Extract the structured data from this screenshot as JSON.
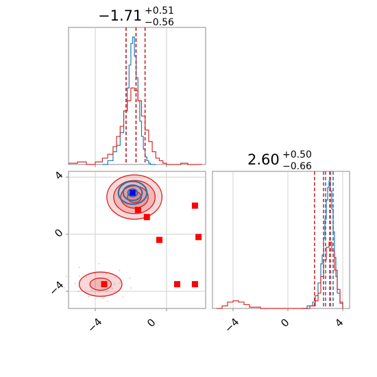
{
  "chart_data": {
    "type": "corner",
    "parameters": 2,
    "colors": {
      "series_a": "#1f77b4",
      "series_b": "#d62728",
      "injected_marker": "#0000ff",
      "points": "#ff0000"
    },
    "grid": true,
    "panels": [
      {
        "id": "marginal-param-1",
        "type": "histogram",
        "title": {
          "median": "−1.71",
          "plus": "+0.51",
          "minus": "−0.56"
        },
        "xlim": [
          -5.5,
          2.2
        ],
        "series": [
          {
            "color": "#1f77b4",
            "x": [
              -3.6,
              -3.3,
              -3.0,
              -2.8,
              -2.6,
              -2.4,
              -2.2,
              -2.1,
              -2.0,
              -1.9,
              -1.8,
              -1.7,
              -1.6,
              -1.5,
              -1.4,
              -1.3,
              -1.2,
              -1.1,
              -1.0,
              -0.9,
              -0.8,
              -0.6
            ],
            "y": [
              0.0,
              0.03,
              0.1,
              0.15,
              0.25,
              0.42,
              0.6,
              0.78,
              0.95,
              1.0,
              0.85,
              0.68,
              0.5,
              0.34,
              0.22,
              0.12,
              0.06,
              0.03,
              0.01,
              0.0,
              0.0,
              0.0
            ],
            "quantiles": [
              -2.27,
              -1.71,
              -1.2
            ]
          },
          {
            "color": "#d62728",
            "x": [
              -5.5,
              -5.0,
              -4.5,
              -4.0,
              -3.6,
              -3.3,
              -3.0,
              -2.8,
              -2.6,
              -2.4,
              -2.2,
              -2.0,
              -1.8,
              -1.6,
              -1.4,
              -1.2,
              -1.0,
              -0.8,
              -0.6,
              -0.4,
              -0.2,
              0.0,
              0.4,
              0.8,
              1.2,
              1.6,
              2.0
            ],
            "y": [
              0.01,
              0.02,
              0.0,
              0.02,
              0.05,
              0.08,
              0.14,
              0.22,
              0.3,
              0.42,
              0.5,
              0.6,
              0.58,
              0.5,
              0.38,
              0.27,
              0.18,
              0.1,
              0.05,
              0.03,
              0.01,
              0.0,
              0.0,
              0.01,
              0.0,
              0.0,
              0.0
            ],
            "quantiles": [
              -2.27,
              -1.71,
              -1.2
            ]
          }
        ]
      },
      {
        "id": "joint-param-1-2",
        "type": "contour",
        "xlim": [
          -5.5,
          2.2
        ],
        "ylim": [
          -5.2,
          4.4
        ],
        "xticks": [
          "−4",
          "0"
        ],
        "yticks": [
          "4",
          "0",
          "−4"
        ],
        "truth": {
          "x": -1.9,
          "y": 2.9
        },
        "red_points": [
          [
            -1.9,
            2.9
          ],
          [
            -1.6,
            1.7
          ],
          [
            -1.1,
            1.2
          ],
          [
            -0.4,
            -0.4
          ],
          [
            1.6,
            2.0
          ],
          [
            1.8,
            -0.2
          ],
          [
            0.6,
            -3.5
          ],
          [
            1.6,
            -3.5
          ],
          [
            -3.5,
            -3.5
          ]
        ],
        "blobs": [
          {
            "cx": -1.8,
            "cy": 2.6,
            "rx": 1.55,
            "ry": 1.55,
            "levels": 4,
            "color": "#d62728"
          },
          {
            "cx": -3.7,
            "cy": -3.5,
            "rx": 1.2,
            "ry": 0.85,
            "levels": 2,
            "color": "#d62728"
          },
          {
            "cx": -1.9,
            "cy": 2.9,
            "rx": 0.8,
            "ry": 0.8,
            "levels": 3,
            "color": "#1f77b4"
          }
        ]
      },
      {
        "id": "marginal-param-2",
        "type": "histogram",
        "title": {
          "median": "2.60",
          "plus": "+0.50",
          "minus": "−0.66"
        },
        "xlim": [
          -5.5,
          4.5
        ],
        "xticks": [
          "−4",
          "0",
          "4"
        ],
        "series": [
          {
            "color": "#1f77b4",
            "x": [
              1.0,
              1.4,
              1.8,
              2.0,
              2.2,
              2.4,
              2.5,
              2.6,
              2.7,
              2.8,
              2.9,
              3.0,
              3.1,
              3.2,
              3.3,
              3.4,
              3.5,
              3.6,
              3.8,
              4.0
            ],
            "y": [
              0.0,
              0.02,
              0.05,
              0.1,
              0.2,
              0.35,
              0.42,
              0.55,
              0.7,
              0.85,
              0.95,
              1.0,
              0.92,
              0.78,
              0.6,
              0.4,
              0.25,
              0.12,
              0.04,
              0.0
            ],
            "quantiles": [
              2.75,
              3.05,
              3.3
            ]
          },
          {
            "color": "#d62728",
            "x": [
              -5.2,
              -4.8,
              -4.4,
              -4.0,
              -3.6,
              -3.2,
              -2.8,
              -2.0,
              -1.0,
              0.0,
              1.0,
              1.6,
              2.0,
              2.2,
              2.4,
              2.6,
              2.8,
              3.0,
              3.2,
              3.4,
              3.6,
              3.8,
              4.0
            ],
            "y": [
              0.0,
              0.02,
              0.05,
              0.06,
              0.05,
              0.03,
              0.01,
              0.0,
              0.0,
              0.0,
              0.0,
              0.02,
              0.06,
              0.12,
              0.25,
              0.38,
              0.48,
              0.52,
              0.45,
              0.3,
              0.15,
              0.05,
              0.0
            ],
            "quantiles": [
              1.94,
              2.6,
              3.1
            ]
          }
        ]
      }
    ]
  }
}
